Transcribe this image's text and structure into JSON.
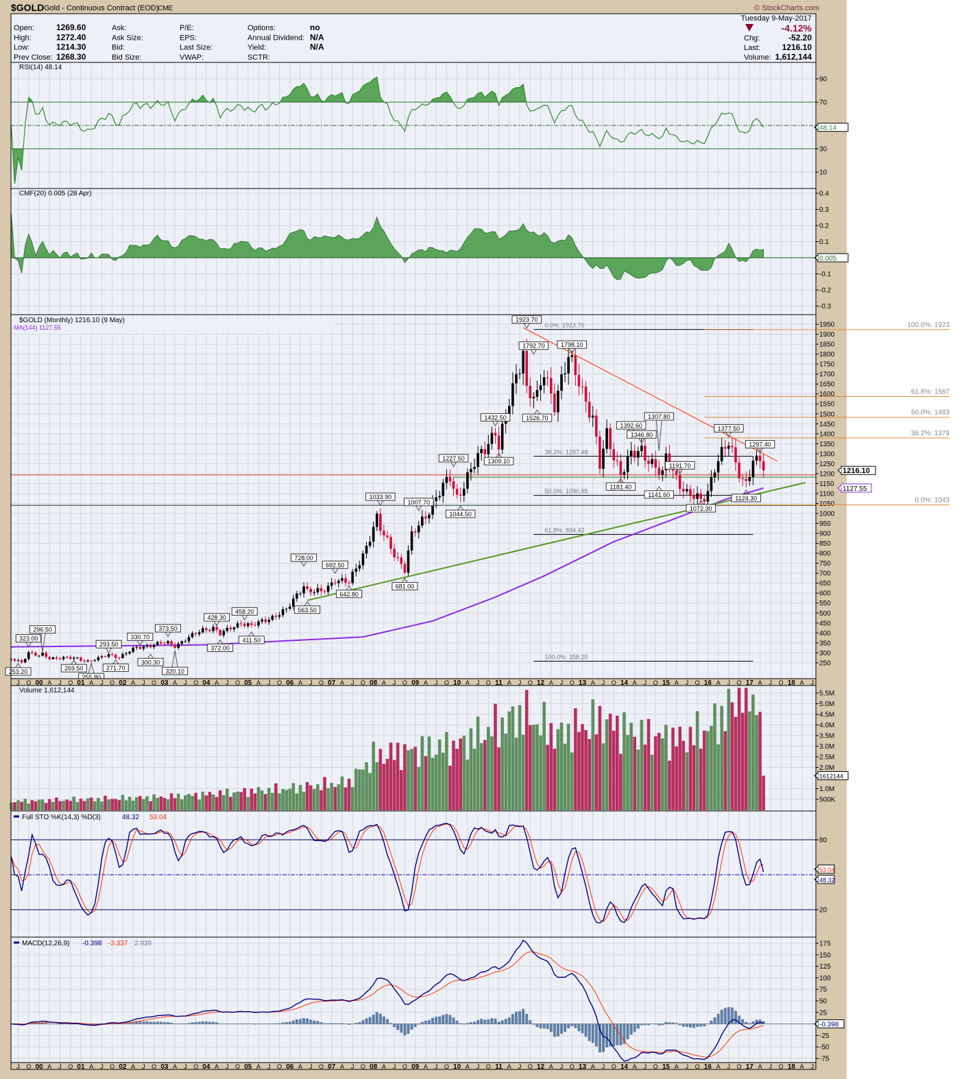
{
  "header": {
    "symbol": "$GOLD",
    "name": "Gold - Continuous Contract (EOD)",
    "exchange": "CME",
    "copyright": "© StockCharts.com",
    "date": "Tuesday  9-May-2017",
    "pct_change": "-4.12%",
    "chg_label": "Chg:",
    "chg": "-52.20",
    "last_label": "Last:",
    "last": "1216.10",
    "volume_label": "Volume:",
    "volume": "1,612,144",
    "col1": [
      {
        "label": "Open:",
        "value": "1269.60"
      },
      {
        "label": "High:",
        "value": "1272.40"
      },
      {
        "label": "Low:",
        "value": "1214.30"
      },
      {
        "label": "Prev Close:",
        "value": "1268.30"
      }
    ],
    "col2": [
      {
        "label": "Ask:"
      },
      {
        "label": "Ask Size:"
      },
      {
        "label": "Bid:"
      },
      {
        "label": "Bid Size:"
      }
    ],
    "col3": [
      {
        "label": "P/E:"
      },
      {
        "label": "EPS:"
      },
      {
        "label": "Last Size:"
      },
      {
        "label": "VWAP:"
      }
    ],
    "col4": [
      {
        "label": "Options:",
        "value": "no"
      },
      {
        "label": "Annual Dividend:",
        "value": "N/A"
      },
      {
        "label": "Yield:",
        "value": "N/A"
      },
      {
        "label": "SCTR:",
        "value": ""
      }
    ]
  },
  "colors": {
    "up": "#000000",
    "down": "#d0103a",
    "ma": "#8a2be2",
    "vol_up": "#5e8f5e",
    "vol_down": "#b5305e",
    "rsi": "#2e8b2e",
    "cmf_fill": "#5aa55a",
    "sto_k": "#00007f",
    "sto_d": "#ff3300",
    "macd": "#00007f",
    "signal": "#ff3300",
    "hist": "#5f7fa5",
    "fib_orange": "#e08a3a",
    "trend_red": "#ff4a1a",
    "trend_green": "#5a9a20"
  },
  "chart_data": {
    "type": "candlestick",
    "title": "$GOLD (Monthly) 1216.10 (9 May)",
    "period": "monthly",
    "x_range": [
      "1999-05",
      "2018-08"
    ],
    "x_tick_labels": [
      "J",
      "O",
      "00",
      "A",
      "J",
      "O",
      "01",
      "A",
      "J",
      "O",
      "02",
      "A",
      "J",
      "O",
      "03",
      "A",
      "J",
      "O",
      "04",
      "A",
      "J",
      "O",
      "05",
      "A",
      "J",
      "O",
      "06",
      "A",
      "J",
      "O",
      "07",
      "A",
      "J",
      "O",
      "08",
      "A",
      "J",
      "O",
      "09",
      "A",
      "J",
      "O",
      "10",
      "A",
      "J",
      "O",
      "11",
      "A",
      "J",
      "O",
      "12",
      "A",
      "J",
      "O",
      "13",
      "A",
      "J",
      "O",
      "14",
      "A",
      "J",
      "O",
      "15",
      "A",
      "J",
      "O",
      "16",
      "A",
      "J",
      "O",
      "17",
      "A",
      "J",
      "O",
      "18",
      "A",
      "J"
    ],
    "close_keypoints": [
      [
        "1999-05",
        270
      ],
      [
        "1999-08",
        255
      ],
      [
        "1999-10",
        300
      ],
      [
        "2000-01",
        283
      ],
      [
        "2000-02",
        293
      ],
      [
        "2000-04",
        275
      ],
      [
        "2000-12",
        272
      ],
      [
        "2001-03",
        258
      ],
      [
        "2001-06",
        270
      ],
      [
        "2001-09",
        293
      ],
      [
        "2001-12",
        278
      ],
      [
        "2002-05",
        326
      ],
      [
        "2002-12",
        347
      ],
      [
        "2003-02",
        350
      ],
      [
        "2003-04",
        336
      ],
      [
        "2003-12",
        416
      ],
      [
        "2004-03",
        427
      ],
      [
        "2004-05",
        394
      ],
      [
        "2004-11",
        453
      ],
      [
        "2005-02",
        434
      ],
      [
        "2005-12",
        513
      ],
      [
        "2006-05",
        643
      ],
      [
        "2006-06",
        613
      ],
      [
        "2006-10",
        603
      ],
      [
        "2006-12",
        632
      ],
      [
        "2007-02",
        672
      ],
      [
        "2007-06",
        650
      ],
      [
        "2007-10",
        795
      ],
      [
        "2008-02",
        972
      ],
      [
        "2008-03",
        917
      ],
      [
        "2008-10",
        718
      ],
      [
        "2008-12",
        884
      ],
      [
        "2009-02",
        942
      ],
      [
        "2009-11",
        1182
      ],
      [
        "2010-01",
        1083
      ],
      [
        "2010-06",
        1245
      ],
      [
        "2010-12",
        1421
      ],
      [
        "2011-01",
        1333
      ],
      [
        "2011-04",
        1556
      ],
      [
        "2011-08",
        1829
      ],
      [
        "2011-09",
        1620
      ],
      [
        "2011-12",
        1566
      ],
      [
        "2012-02",
        1711
      ],
      [
        "2012-05",
        1560
      ],
      [
        "2012-09",
        1773
      ],
      [
        "2012-12",
        1675
      ],
      [
        "2013-04",
        1472
      ],
      [
        "2013-06",
        1234
      ],
      [
        "2013-08",
        1396
      ],
      [
        "2013-12",
        1202
      ],
      [
        "2014-03",
        1284
      ],
      [
        "2014-06",
        1322
      ],
      [
        "2014-12",
        1184
      ],
      [
        "2015-01",
        1278
      ],
      [
        "2015-07",
        1095
      ],
      [
        "2015-11",
        1065
      ],
      [
        "2016-01",
        1116
      ],
      [
        "2016-03",
        1235
      ],
      [
        "2016-06",
        1322
      ],
      [
        "2016-07",
        1350
      ],
      [
        "2016-11",
        1173
      ],
      [
        "2016-12",
        1152
      ],
      [
        "2017-02",
        1254
      ],
      [
        "2017-03",
        1249
      ],
      [
        "2017-04",
        1268
      ],
      [
        "2017-05",
        1216.1
      ]
    ],
    "volume_keypoints_millions": [
      [
        "1999-05",
        0.4
      ],
      [
        "2003-01",
        0.6
      ],
      [
        "2006-01",
        1.0
      ],
      [
        "2007-06",
        1.3
      ],
      [
        "2008-01",
        2.5
      ],
      [
        "2009-01",
        2.8
      ],
      [
        "2010-01",
        3.0
      ],
      [
        "2011-08",
        4.5
      ],
      [
        "2012-06",
        3.5
      ],
      [
        "2013-06",
        4.2
      ],
      [
        "2014-06",
        3.5
      ],
      [
        "2015-06",
        3.3
      ],
      [
        "2016-01",
        3.8
      ],
      [
        "2016-06",
        4.5
      ],
      [
        "2016-12",
        5.8
      ],
      [
        "2017-04",
        4.7
      ],
      [
        "2017-05",
        1.612144
      ]
    ],
    "ma": {
      "label": "MA(144) 1127.55",
      "value": "1127.55",
      "keypoints": [
        [
          "1999-05",
          330
        ],
        [
          "2004-01",
          340
        ],
        [
          "2007-10",
          380
        ],
        [
          "2009-06",
          460
        ],
        [
          "2010-12",
          580
        ],
        [
          "2012-02",
          686
        ],
        [
          "2013-10",
          858
        ],
        [
          "2015-06",
          990
        ],
        [
          "2016-06",
          1070
        ],
        [
          "2017-05",
          1127.55
        ]
      ]
    },
    "annotations": [
      {
        "label": "253.20",
        "date": "1999-07",
        "price": 253.2,
        "pos": "below"
      },
      {
        "label": "323.00",
        "date": "1999-10",
        "price": 323,
        "pos": "above"
      },
      {
        "label": "296.50",
        "date": "2000-02",
        "price": 296.5,
        "pos": "above"
      },
      {
        "label": "269.50",
        "date": "2000-11",
        "price": 269.5,
        "pos": "below"
      },
      {
        "label": "293.50",
        "date": "2001-09",
        "price": 293.5,
        "pos": "above"
      },
      {
        "label": "255.80",
        "date": "2001-04",
        "price": 255.8,
        "pos": "below"
      },
      {
        "label": "271.70",
        "date": "2001-11",
        "price": 271.7,
        "pos": "below"
      },
      {
        "label": "330.70",
        "date": "2002-06",
        "price": 330.7,
        "pos": "above"
      },
      {
        "label": "300.30",
        "date": "2002-09",
        "price": 300.3,
        "pos": "below"
      },
      {
        "label": "373.50",
        "date": "2003-02",
        "price": 373.5,
        "pos": "above"
      },
      {
        "label": "320.10",
        "date": "2003-04",
        "price": 320.1,
        "pos": "below"
      },
      {
        "label": "428.30",
        "date": "2004-04",
        "price": 428.3,
        "pos": "above"
      },
      {
        "label": "372.00",
        "date": "2004-05",
        "price": 372,
        "pos": "below"
      },
      {
        "label": "458.20",
        "date": "2004-12",
        "price": 458.2,
        "pos": "above"
      },
      {
        "label": "411.50",
        "date": "2005-02",
        "price": 411.5,
        "pos": "below"
      },
      {
        "label": "728.00",
        "date": "2006-05",
        "price": 728,
        "pos": "above"
      },
      {
        "label": "563.50",
        "date": "2006-06",
        "price": 563.5,
        "pos": "below"
      },
      {
        "label": "692.50",
        "date": "2007-02",
        "price": 692.5,
        "pos": "above"
      },
      {
        "label": "642.80",
        "date": "2007-06",
        "price": 642.8,
        "pos": "below"
      },
      {
        "label": "1033.90",
        "date": "2008-03",
        "price": 1033.9,
        "pos": "above"
      },
      {
        "label": "681.00",
        "date": "2008-10",
        "price": 681,
        "pos": "below"
      },
      {
        "label": "1007.70",
        "date": "2009-02",
        "price": 1007.7,
        "pos": "above"
      },
      {
        "label": "1044.50",
        "date": "2010-02",
        "price": 1044.5,
        "pos": "below"
      },
      {
        "label": "1227.50",
        "date": "2009-12",
        "price": 1227.5,
        "pos": "above"
      },
      {
        "label": "1432.50",
        "date": "2010-12",
        "price": 1432.5,
        "pos": "above"
      },
      {
        "label": "1309.10",
        "date": "2011-01",
        "price": 1309.1,
        "pos": "below"
      },
      {
        "label": "1923.70",
        "date": "2011-09",
        "price": 1923.7,
        "pos": "above"
      },
      {
        "label": "1792.70",
        "date": "2011-11",
        "price": 1792.7,
        "pos": "above"
      },
      {
        "label": "1526.70",
        "date": "2011-12",
        "price": 1526.7,
        "pos": "below"
      },
      {
        "label": "1798.10",
        "date": "2012-10",
        "price": 1798.1,
        "pos": "above"
      },
      {
        "label": "1392.60",
        "date": "2014-03",
        "price": 1392.6,
        "pos": "above"
      },
      {
        "label": "1181.40",
        "date": "2013-12",
        "price": 1181.4,
        "pos": "below"
      },
      {
        "label": "1346.80",
        "date": "2014-06",
        "price": 1346.8,
        "pos": "above"
      },
      {
        "label": "1307.80",
        "date": "2014-11",
        "price": 1307.8,
        "pos": "above"
      },
      {
        "label": "1141.60",
        "date": "2014-11",
        "price": 1141.6,
        "pos": "below"
      },
      {
        "label": "1191.70",
        "date": "2015-05",
        "price": 1191.7,
        "pos": "above"
      },
      {
        "label": "1072.30",
        "date": "2015-11",
        "price": 1072.3,
        "pos": "below"
      },
      {
        "label": "1377.50",
        "date": "2016-07",
        "price": 1377.5,
        "pos": "above"
      },
      {
        "label": "1297.40",
        "date": "2017-04",
        "price": 1297.4,
        "pos": "above"
      },
      {
        "label": "1124.30",
        "date": "2016-12",
        "price": 1124.3,
        "pos": "below"
      }
    ],
    "fib_retracement": {
      "start": "2011-11",
      "end": "2017-02",
      "levels": [
        {
          "label": "0.0%: 1923.70",
          "price": 1923.7
        },
        {
          "label": "38.2%: 1287.48",
          "price": 1287.48
        },
        {
          "label": "50.0%: 1090.95",
          "price": 1090.95
        },
        {
          "label": "61.8%: 894.42",
          "price": 894.42
        },
        {
          "label": "100.0%: 258.20",
          "price": 258.2
        }
      ]
    },
    "fib_projection": {
      "start": "2015-12",
      "levels": [
        {
          "label": "100.0%: 1923",
          "price": 1923
        },
        {
          "label": "61.8%: 1587",
          "price": 1587
        },
        {
          "label": "50.0%: 1483",
          "price": 1483
        },
        {
          "label": "38.2%: 1379",
          "price": 1379
        },
        {
          "label": "0.0%: 1043",
          "price": 1043
        }
      ]
    },
    "trendlines": [
      {
        "name": "support-trendline",
        "color": "trend_green",
        "from": [
          "2006-06",
          563.5
        ],
        "to": [
          "2018-05",
          1155
        ]
      },
      {
        "name": "resistance-trendline",
        "color": "trend_red",
        "from": [
          "2011-08",
          1933
        ],
        "to": [
          "2017-09",
          1262
        ]
      }
    ],
    "horizontal_lines": [
      {
        "name": "red-horizontal-line",
        "price": 1193,
        "color": "#e03020",
        "from": "1999-05"
      },
      {
        "name": "green-horizontal-line",
        "price": 1182,
        "color": "#2a7a2a",
        "from": "2009-12"
      },
      {
        "name": "dark-horizontal-line",
        "price": 1041,
        "color": "#1a3a1a",
        "from": "1999-05"
      }
    ],
    "panels": {
      "price": {
        "legend": "$GOLD (Monthly) 1216.10 (9 May)",
        "ticks": [
          1950,
          1900,
          1850,
          1800,
          1750,
          1700,
          1650,
          1600,
          1550,
          1500,
          1450,
          1400,
          1350,
          1300,
          1250,
          1200,
          1150,
          1100,
          1050,
          1000,
          950,
          900,
          850,
          800,
          750,
          700,
          650,
          600,
          550,
          500,
          450,
          400,
          350,
          300,
          250
        ],
        "last_box": "1216.10",
        "ma_box": "1127.55",
        "ylim": [
          250,
          1950
        ]
      },
      "rsi": {
        "legend": "RSI(14) 48.14",
        "ticks": [
          90,
          70,
          30,
          10
        ],
        "last_box": "48.14",
        "ylim": [
          0,
          100
        ]
      },
      "cmf": {
        "legend": "CMF(20) 0.005 (28 Apr)",
        "ticks": [
          0.4,
          0.3,
          0.2,
          0.1,
          -0.1,
          -0.2,
          -0.3
        ],
        "last_box": "0.005"
      },
      "volume": {
        "legend": "Volume 1,612,144",
        "ticks": [
          "5.5M",
          "5.0M",
          "4.5M",
          "4.0M",
          "3.5M",
          "3.0M",
          "2.5M",
          "2.0M",
          "1.0M",
          "500K"
        ],
        "tick_values": [
          5.5,
          5,
          4.5,
          4,
          3.5,
          3,
          2.5,
          2,
          1,
          0.5
        ],
        "last_box": "1612144"
      },
      "sto": {
        "legend": "Full STO %K(14,3) %D(3)",
        "k": "48.32",
        "d": "53.04",
        "ticks": [
          80,
          20
        ],
        "k_box": "48.32",
        "d_box": "53.04"
      },
      "macd": {
        "legend": "MACD(12,26,9)",
        "macd": "-0.398",
        "signal": "-3.337",
        "hist": "2.939",
        "ticks": [
          175,
          150,
          125,
          100,
          75,
          50,
          25,
          -25,
          -50,
          -75
        ],
        "last_box": "-0.398"
      }
    }
  }
}
